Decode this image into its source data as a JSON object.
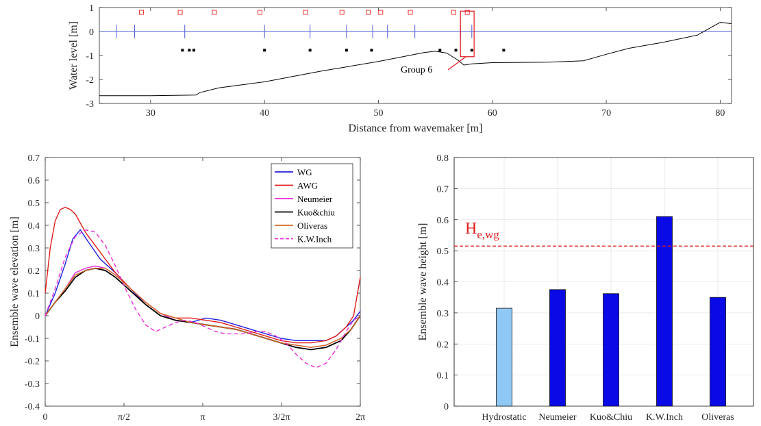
{
  "chart_data": [
    {
      "type": "line",
      "xlabel": "Distance from wavemaker [m]",
      "ylabel": "Water level [m]",
      "xlim": [
        25.5,
        81
      ],
      "ylim": [
        -3,
        1
      ],
      "xticks": [
        30,
        40,
        50,
        60,
        70,
        80
      ],
      "yticks": [
        -3,
        -2,
        -1,
        0,
        1
      ],
      "annotation": "Group 6",
      "colors": {
        "still_water": "#4a5ad6",
        "gauge_marker": "#e8332b",
        "sensor": "#000000",
        "bathymetry": "#000000",
        "highlight_box": "#e0141e"
      },
      "series": [
        {
          "kind": "bathymetry",
          "x": [
            25.5,
            30,
            34,
            34.3,
            36,
            40,
            45,
            50,
            54,
            55,
            56,
            57,
            57.5,
            58.2,
            60,
            65,
            68,
            70,
            72,
            75,
            78,
            80,
            81
          ],
          "y": [
            -2.68,
            -2.68,
            -2.65,
            -2.55,
            -2.35,
            -2.1,
            -1.65,
            -1.25,
            -0.88,
            -0.82,
            -0.9,
            -1.2,
            -1.4,
            -1.35,
            -1.3,
            -1.28,
            -1.22,
            -0.95,
            -0.7,
            -0.45,
            -0.15,
            0.38,
            0.33
          ]
        },
        {
          "kind": "still-water",
          "x": [
            25.5,
            81
          ],
          "y": [
            0,
            0
          ]
        }
      ],
      "wave_gauges_x": [
        27,
        28.6,
        33,
        40,
        44,
        47.2,
        49.5,
        50.8,
        53.2,
        57.2,
        58.2
      ],
      "gauge_markers_x": [
        29.2,
        32.6,
        35.6,
        39.6,
        43.6,
        46.8,
        49.1,
        50.2,
        52.8,
        56.6,
        57.8
      ],
      "sensors_x": [
        32.8,
        33.4,
        33.8,
        40,
        44,
        47.2,
        49.4,
        55.4,
        56.8,
        58.2,
        61
      ],
      "highlight_box_x": [
        57.2,
        58.4
      ],
      "highlight_box_y": [
        -1.05,
        0.85
      ]
    },
    {
      "type": "line",
      "xlabel": "",
      "ylabel": "Ensemble wave elevation [m]",
      "xlim": [
        0,
        6.2832
      ],
      "ylim": [
        -0.4,
        0.7
      ],
      "yticks": [
        -0.4,
        -0.3,
        -0.2,
        -0.1,
        0,
        0.1,
        0.2,
        0.3,
        0.4,
        0.5,
        0.6,
        0.7
      ],
      "xticklabels": [
        "0",
        "π/2",
        "π",
        "3/2π",
        "2π"
      ],
      "xticks": [
        0,
        1.5708,
        3.1416,
        4.7124,
        6.2832
      ],
      "legend_position": "top-right",
      "series": [
        {
          "name": "WG",
          "color": "#1f1fe0",
          "dash": false,
          "x": [
            0,
            0.2,
            0.4,
            0.55,
            0.7,
            0.85,
            1.1,
            1.4,
            1.7,
            2.0,
            2.3,
            2.6,
            2.9,
            3.2,
            3.5,
            3.8,
            4.1,
            4.4,
            4.7,
            5.0,
            5.3,
            5.6,
            5.8,
            6.0,
            6.15,
            6.2832
          ],
          "y": [
            0,
            0.1,
            0.23,
            0.34,
            0.38,
            0.33,
            0.25,
            0.19,
            0.12,
            0.05,
            0.0,
            -0.02,
            -0.03,
            -0.01,
            -0.02,
            -0.04,
            -0.06,
            -0.08,
            -0.1,
            -0.11,
            -0.11,
            -0.11,
            -0.09,
            -0.05,
            -0.02,
            0.02
          ]
        },
        {
          "name": "AWG",
          "color": "#e01b1b",
          "dash": false,
          "x": [
            0,
            0.1,
            0.2,
            0.3,
            0.4,
            0.5,
            0.6,
            0.8,
            1.0,
            1.2,
            1.4,
            1.7,
            2.0,
            2.3,
            2.6,
            2.9,
            3.2,
            3.5,
            3.8,
            4.1,
            4.4,
            4.7,
            5.0,
            5.3,
            5.6,
            5.8,
            6.0,
            6.15,
            6.2832
          ],
          "y": [
            0.1,
            0.3,
            0.42,
            0.47,
            0.48,
            0.47,
            0.45,
            0.37,
            0.31,
            0.25,
            0.19,
            0.12,
            0.06,
            0.01,
            -0.01,
            -0.01,
            -0.02,
            -0.03,
            -0.05,
            -0.07,
            -0.09,
            -0.11,
            -0.12,
            -0.12,
            -0.11,
            -0.09,
            -0.05,
            0.0,
            0.17
          ]
        },
        {
          "name": "Neumeier",
          "color": "#ea2ad9",
          "dash": false,
          "x": [
            0,
            0.2,
            0.4,
            0.6,
            0.8,
            1.0,
            1.2,
            1.4,
            1.7,
            2.0,
            2.3,
            2.6,
            2.9,
            3.2,
            3.5,
            3.8,
            4.1,
            4.4,
            4.7,
            5.0,
            5.3,
            5.6,
            5.9,
            6.1,
            6.2832
          ],
          "y": [
            0,
            0.06,
            0.12,
            0.19,
            0.21,
            0.22,
            0.21,
            0.18,
            0.12,
            0.06,
            0.01,
            -0.02,
            -0.03,
            -0.04,
            -0.05,
            -0.06,
            -0.08,
            -0.1,
            -0.12,
            -0.13,
            -0.14,
            -0.13,
            -0.1,
            -0.06,
            0.0
          ]
        },
        {
          "name": "Kuo&chiu",
          "color": "#000000",
          "dash": false,
          "x": [
            0,
            0.2,
            0.4,
            0.6,
            0.8,
            1.0,
            1.2,
            1.4,
            1.7,
            2.0,
            2.3,
            2.6,
            2.9,
            3.2,
            3.5,
            3.8,
            4.1,
            4.4,
            4.7,
            5.0,
            5.3,
            5.6,
            5.9,
            6.1,
            6.2832
          ],
          "y": [
            0,
            0.06,
            0.11,
            0.17,
            0.2,
            0.21,
            0.2,
            0.17,
            0.11,
            0.05,
            0.0,
            -0.02,
            -0.03,
            -0.04,
            -0.05,
            -0.06,
            -0.08,
            -0.1,
            -0.12,
            -0.14,
            -0.15,
            -0.14,
            -0.11,
            -0.06,
            0.0
          ]
        },
        {
          "name": "Oliveras",
          "color": "#d2691e",
          "dash": false,
          "x": [
            0,
            0.2,
            0.4,
            0.6,
            0.8,
            1.0,
            1.2,
            1.4,
            1.7,
            2.0,
            2.3,
            2.6,
            2.9,
            3.2,
            3.5,
            3.8,
            4.1,
            4.4,
            4.7,
            5.0,
            5.3,
            5.6,
            5.9,
            6.1,
            6.2832
          ],
          "y": [
            0,
            0.06,
            0.12,
            0.18,
            0.2,
            0.21,
            0.21,
            0.18,
            0.12,
            0.06,
            0.01,
            -0.01,
            -0.03,
            -0.04,
            -0.05,
            -0.06,
            -0.08,
            -0.1,
            -0.12,
            -0.13,
            -0.14,
            -0.13,
            -0.1,
            -0.06,
            0.0
          ]
        },
        {
          "name": "K.W.Inch",
          "color": "#ea2ad9",
          "dash": true,
          "x": [
            0,
            0.2,
            0.4,
            0.6,
            0.8,
            1.0,
            1.2,
            1.4,
            1.6,
            1.8,
            2.0,
            2.2,
            2.4,
            2.6,
            2.8,
            3.0,
            3.2,
            3.4,
            3.6,
            3.8,
            4.0,
            4.2,
            4.4,
            4.6,
            4.8,
            5.0,
            5.2,
            5.4,
            5.6,
            5.8,
            6.0,
            6.15,
            6.2832
          ],
          "y": [
            0,
            0.12,
            0.26,
            0.35,
            0.38,
            0.37,
            0.31,
            0.22,
            0.12,
            0.03,
            -0.04,
            -0.07,
            -0.05,
            -0.03,
            -0.02,
            -0.03,
            -0.05,
            -0.07,
            -0.08,
            -0.08,
            -0.08,
            -0.07,
            -0.07,
            -0.09,
            -0.12,
            -0.17,
            -0.21,
            -0.23,
            -0.21,
            -0.15,
            -0.07,
            -0.02,
            0.0
          ]
        }
      ]
    },
    {
      "type": "bar",
      "ylabel": "Ensemble wave height [m]",
      "ylim": [
        0,
        0.8
      ],
      "yticks": [
        0,
        0.1,
        0.2,
        0.3,
        0.4,
        0.5,
        0.6,
        0.7,
        0.8
      ],
      "categories": [
        "Hydrostatic",
        "Neumeier",
        "Kuo&Chiu",
        "K.W.Inch",
        "Oliveras"
      ],
      "values": [
        0.315,
        0.375,
        0.362,
        0.61,
        0.35
      ],
      "bar_colors": [
        "#8fc8f5",
        "#0a0ae6",
        "#0a0ae6",
        "#0a0ae6",
        "#0a0ae6"
      ],
      "reference_line": {
        "value": 0.515,
        "label": "H",
        "label_sub": "e,wg",
        "color": "#e01b1b",
        "dash": true
      },
      "grid": true
    }
  ]
}
